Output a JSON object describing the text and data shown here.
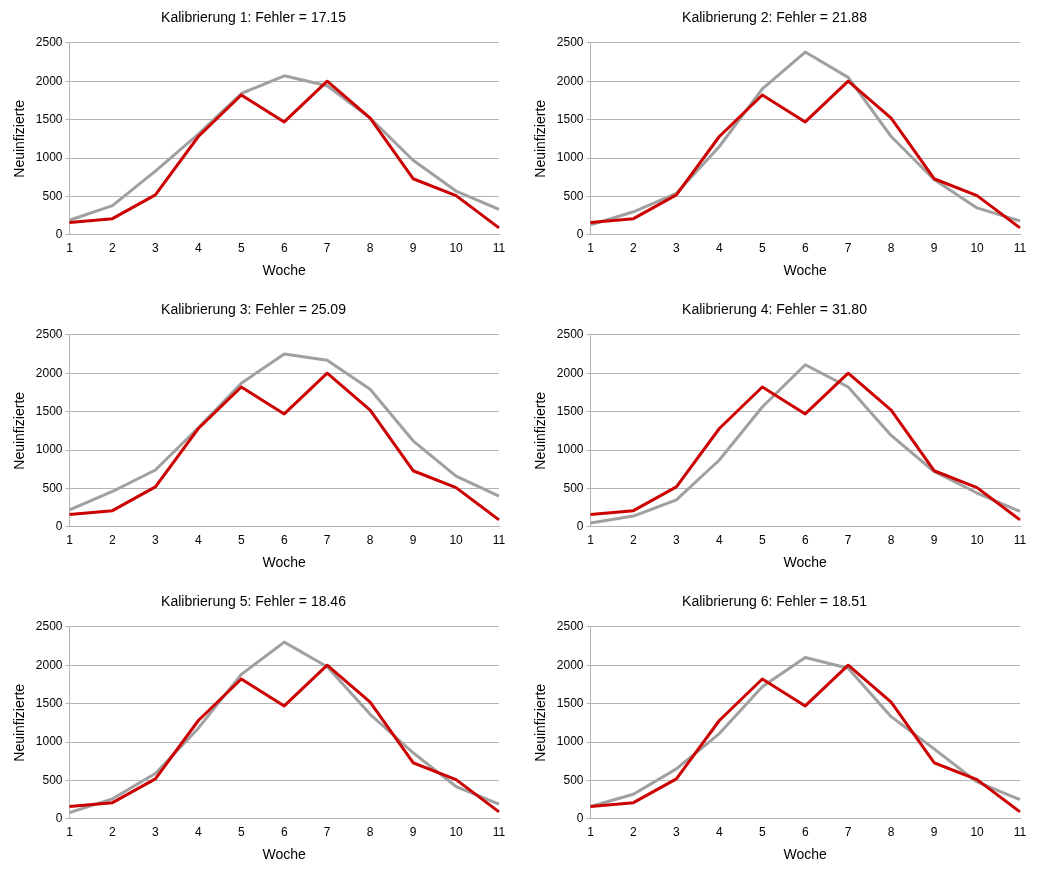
{
  "chart_data": [
    {
      "type": "line",
      "title": "Kalibrierung 1: Fehler = 17.15",
      "xlabel": "Woche",
      "ylabel": "Neuinfizierte",
      "categories": [
        "1",
        "2",
        "3",
        "4",
        "5",
        "6",
        "7",
        "8",
        "9",
        "10",
        "11"
      ],
      "ylim": [
        0,
        2500
      ],
      "yticks": [
        0,
        500,
        1000,
        1500,
        2000,
        2500
      ],
      "grid": "y",
      "marker": "none",
      "series": [
        {
          "color": "#cc0000",
          "values": [
            160,
            210,
            520,
            1280,
            1820,
            1470,
            2000,
            1520,
            730,
            510,
            90
          ]
        },
        {
          "color": "#a0a0a0",
          "values": [
            190,
            380,
            830,
            1310,
            1840,
            2070,
            1940,
            1520,
            970,
            570,
            330
          ]
        }
      ]
    },
    {
      "type": "line",
      "title": "Kalibrierung 2: Fehler = 21.88",
      "xlabel": "Woche",
      "ylabel": "Neuinfizierte",
      "categories": [
        "1",
        "2",
        "3",
        "4",
        "5",
        "6",
        "7",
        "8",
        "9",
        "10",
        "11"
      ],
      "ylim": [
        0,
        2500
      ],
      "yticks": [
        0,
        500,
        1000,
        1500,
        2000,
        2500
      ],
      "grid": "y",
      "marker": "none",
      "series": [
        {
          "color": "#cc0000",
          "values": [
            160,
            210,
            520,
            1280,
            1820,
            1470,
            2000,
            1520,
            730,
            510,
            90
          ]
        },
        {
          "color": "#a0a0a0",
          "values": [
            130,
            300,
            540,
            1150,
            1900,
            2380,
            2050,
            1280,
            720,
            350,
            180
          ]
        }
      ]
    },
    {
      "type": "line",
      "title": "Kalibrierung 3: Fehler = 25.09",
      "xlabel": "Woche",
      "ylabel": "Neuinfizierte",
      "categories": [
        "1",
        "2",
        "3",
        "4",
        "5",
        "6",
        "7",
        "8",
        "9",
        "10",
        "11"
      ],
      "ylim": [
        0,
        2500
      ],
      "yticks": [
        0,
        500,
        1000,
        1500,
        2000,
        2500
      ],
      "grid": "y",
      "marker": "none",
      "series": [
        {
          "color": "#cc0000",
          "values": [
            160,
            210,
            520,
            1280,
            1820,
            1470,
            2000,
            1520,
            730,
            510,
            90
          ]
        },
        {
          "color": "#a0a0a0",
          "values": [
            220,
            460,
            740,
            1290,
            1870,
            2250,
            2170,
            1790,
            1120,
            660,
            400
          ]
        }
      ]
    },
    {
      "type": "line",
      "title": "Kalibrierung 4: Fehler = 31.80",
      "xlabel": "Woche",
      "ylabel": "Neuinfizierte",
      "categories": [
        "1",
        "2",
        "3",
        "4",
        "5",
        "6",
        "7",
        "8",
        "9",
        "10",
        "11"
      ],
      "ylim": [
        0,
        2500
      ],
      "yticks": [
        0,
        500,
        1000,
        1500,
        2000,
        2500
      ],
      "grid": "y",
      "marker": "none",
      "series": [
        {
          "color": "#cc0000",
          "values": [
            160,
            210,
            520,
            1280,
            1820,
            1470,
            2000,
            1520,
            730,
            510,
            90
          ]
        },
        {
          "color": "#a0a0a0",
          "values": [
            50,
            140,
            350,
            870,
            1560,
            2110,
            1820,
            1190,
            720,
            440,
            200
          ]
        }
      ]
    },
    {
      "type": "line",
      "title": "Kalibrierung 5: Fehler = 18.46",
      "xlabel": "Woche",
      "ylabel": "Neuinfizierte",
      "categories": [
        "1",
        "2",
        "3",
        "4",
        "5",
        "6",
        "7",
        "8",
        "9",
        "10",
        "11"
      ],
      "ylim": [
        0,
        2500
      ],
      "yticks": [
        0,
        500,
        1000,
        1500,
        2000,
        2500
      ],
      "grid": "y",
      "marker": "none",
      "series": [
        {
          "color": "#cc0000",
          "values": [
            160,
            210,
            520,
            1280,
            1820,
            1470,
            2000,
            1520,
            730,
            510,
            90
          ]
        },
        {
          "color": "#a0a0a0",
          "values": [
            80,
            260,
            590,
            1180,
            1880,
            2300,
            1980,
            1360,
            860,
            420,
            190
          ]
        }
      ]
    },
    {
      "type": "line",
      "title": "Kalibrierung 6: Fehler = 18.51",
      "xlabel": "Woche",
      "ylabel": "Neuinfizierte",
      "categories": [
        "1",
        "2",
        "3",
        "4",
        "5",
        "6",
        "7",
        "8",
        "9",
        "10",
        "11"
      ],
      "ylim": [
        0,
        2500
      ],
      "yticks": [
        0,
        500,
        1000,
        1500,
        2000,
        2500
      ],
      "grid": "y",
      "marker": "none",
      "series": [
        {
          "color": "#cc0000",
          "values": [
            160,
            210,
            520,
            1280,
            1820,
            1470,
            2000,
            1520,
            730,
            510,
            90
          ]
        },
        {
          "color": "#a0a0a0",
          "values": [
            160,
            320,
            650,
            1110,
            1720,
            2100,
            1960,
            1330,
            910,
            480,
            250
          ]
        }
      ]
    }
  ]
}
